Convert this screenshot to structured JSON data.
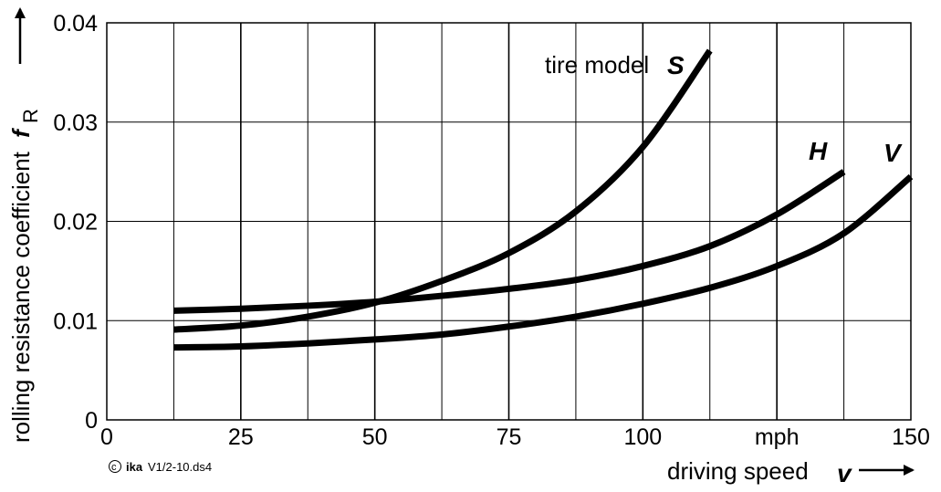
{
  "chart_data": {
    "type": "line",
    "xlabel": "driving speed",
    "xlabel_symbol": "v",
    "ylabel": "rolling resistance coefficient",
    "ylabel_symbol": "f",
    "ylabel_subscript": "R",
    "xlim": [
      0,
      150
    ],
    "ylim": [
      0,
      0.04
    ],
    "x_ticks": [
      "0",
      "25",
      "50",
      "75",
      "100",
      "mph",
      "150"
    ],
    "y_ticks": [
      "0",
      "0.01",
      "0.02",
      "0.03",
      "0.04"
    ],
    "grid": true,
    "copyright_symbol": "©",
    "copyright_org": "ika",
    "copyright_code": "V1/2-10.ds4",
    "series": [
      {
        "name": "tire model",
        "symbol": "S",
        "x": [
          12.5,
          25,
          37.5,
          50,
          62.5,
          75,
          87.5,
          100,
          112.5
        ],
        "y": [
          0.0091,
          0.0095,
          0.0104,
          0.0118,
          0.014,
          0.0168,
          0.021,
          0.0275,
          0.0372
        ]
      },
      {
        "name": "",
        "symbol": "H",
        "x": [
          12.5,
          25,
          37.5,
          50,
          62.5,
          75,
          87.5,
          100,
          112.5,
          125,
          137.5
        ],
        "y": [
          0.011,
          0.0112,
          0.0115,
          0.0119,
          0.0125,
          0.0132,
          0.0141,
          0.0155,
          0.0175,
          0.0207,
          0.025
        ]
      },
      {
        "name": "",
        "symbol": "V",
        "x": [
          12.5,
          25,
          37.5,
          50,
          62.5,
          75,
          87.5,
          100,
          112.5,
          125,
          137.5,
          150
        ],
        "y": [
          0.0073,
          0.0074,
          0.0077,
          0.0081,
          0.0086,
          0.0094,
          0.0104,
          0.0117,
          0.0133,
          0.0155,
          0.0188,
          0.0245
        ]
      }
    ]
  }
}
